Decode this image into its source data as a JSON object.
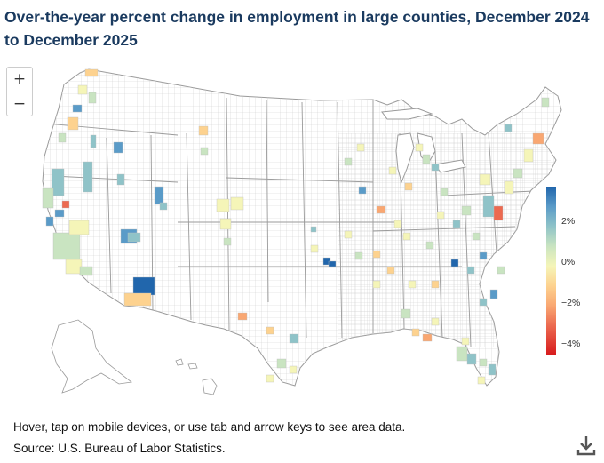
{
  "title": "Over-the-year percent change in employment in large counties, December 2024 to December 2025",
  "zoom": {
    "in_label": "+",
    "out_label": "−"
  },
  "legend": {
    "labels": [
      "2%",
      "0%",
      "−2%",
      "−4%"
    ],
    "stops": [
      {
        "value": 4.0,
        "color": "#2166ac"
      },
      {
        "value": 3.0,
        "color": "#5a9bc8"
      },
      {
        "value": 2.0,
        "color": "#8fc3c8"
      },
      {
        "value": 1.0,
        "color": "#c9e4c1"
      },
      {
        "value": 0.0,
        "color": "#f5f5b8"
      },
      {
        "value": -1.0,
        "color": "#fdd28f"
      },
      {
        "value": -2.0,
        "color": "#f9a772"
      },
      {
        "value": -3.0,
        "color": "#ec6a50"
      },
      {
        "value": -4.5,
        "color": "#d7191c"
      }
    ]
  },
  "colors": {
    "land": "#ffffff",
    "border": "#bfbfbf",
    "state_border": "#9a9a9a",
    "title": "#1a3a5f"
  },
  "icons": {
    "download": "download-icon"
  },
  "note": "Hover, tap on mobile devices, or use tab and arrow keys to see area data.",
  "source": "Source: U.S. Bureau of Labor Statistics."
}
